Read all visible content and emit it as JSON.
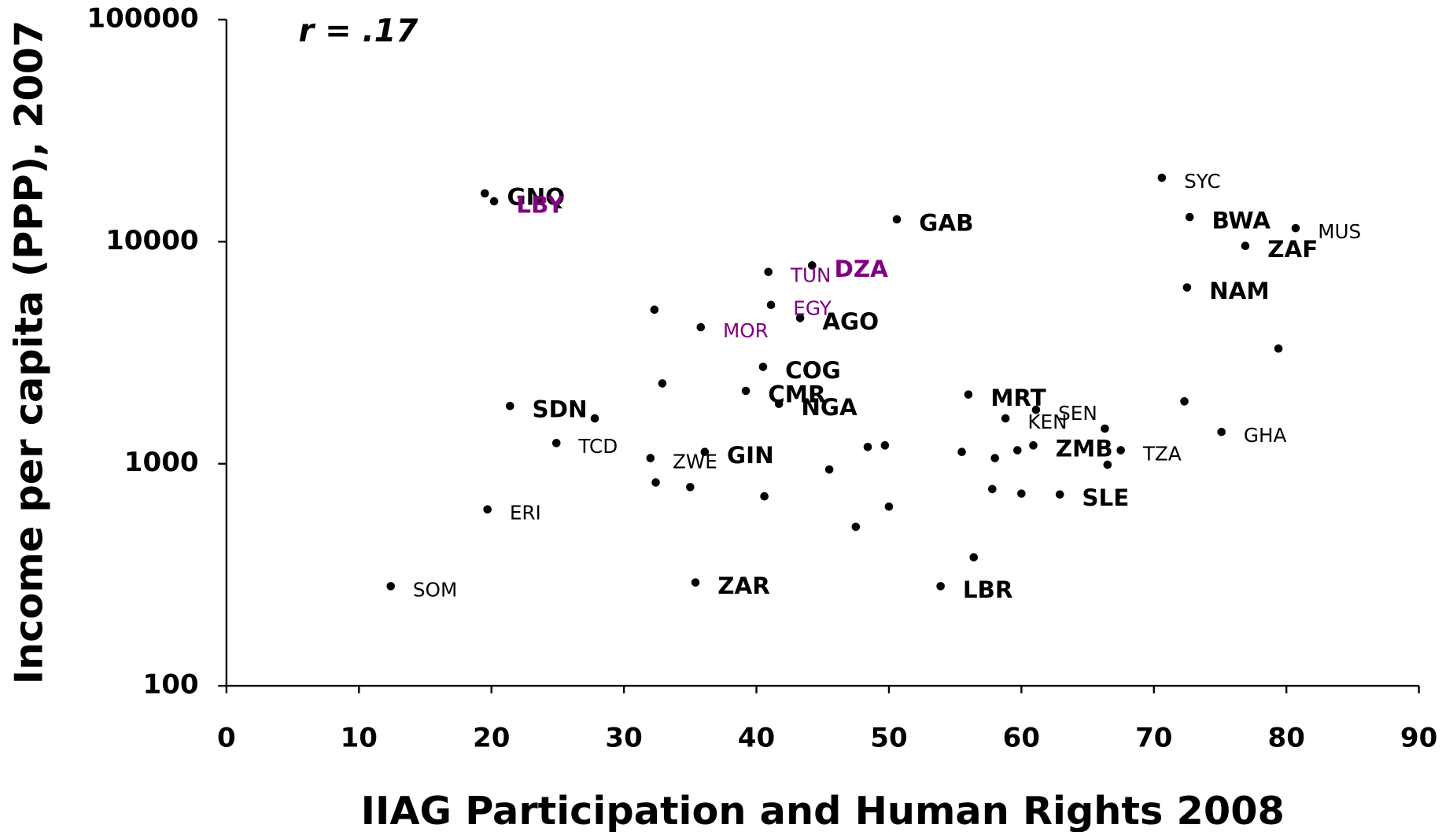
{
  "chart_data": {
    "type": "scatter",
    "annotation": "r  = .17",
    "xlabel": "IIAG Participation and Human Rights 2008",
    "ylabel": "Income per capita (PPP), 2007",
    "xlim": [
      0,
      90
    ],
    "xticks": [
      0,
      10,
      20,
      30,
      40,
      50,
      60,
      70,
      80,
      90
    ],
    "ylim": [
      100,
      100000
    ],
    "yticks": [
      100,
      1000,
      10000,
      100000
    ],
    "log_y": true,
    "grid": false,
    "series": [
      {
        "color": "#000000",
        "bold": true,
        "labels": [
          "GNQ",
          "GAB",
          "BWA",
          "ZAF",
          "NAM",
          "AGO",
          "COG",
          "CMR",
          "NGA",
          "MRT",
          "SDN",
          "GIN",
          "ZMB",
          "SLE",
          "ZAR",
          "LBR"
        ],
        "x": [
          19.5,
          50.6,
          72.7,
          76.9,
          72.5,
          43.3,
          40.5,
          39.2,
          41.7,
          56.0,
          21.4,
          36.1,
          60.9,
          62.9,
          35.4,
          53.9
        ],
        "values": [
          16500,
          12600,
          12900,
          9570,
          6220,
          4530,
          2730,
          2130,
          1860,
          2050,
          1820,
          1130,
          1210,
          727,
          292,
          281
        ]
      },
      {
        "color": "#000000",
        "bold": false,
        "labels": [
          "SYC",
          "MUS",
          "SEN",
          "KEN",
          "GHA",
          "TCD",
          "ZWE",
          "TZA",
          "ERI",
          "SOM"
        ],
        "x": [
          70.6,
          80.7,
          61.1,
          58.8,
          75.1,
          24.9,
          32.0,
          67.5,
          19.7,
          12.4
        ],
        "values": [
          19400,
          11500,
          1750,
          1600,
          1390,
          1240,
          1060,
          1150,
          623,
          281
        ]
      },
      {
        "color": "#800080",
        "bold": true,
        "labels": [
          "LBY",
          "DZA"
        ],
        "x": [
          20.2,
          44.2
        ],
        "values": [
          15200,
          7820
        ]
      },
      {
        "color": "#800080",
        "bold": false,
        "labels": [
          "TUN",
          "EGY",
          "MOR"
        ],
        "x": [
          40.9,
          41.1,
          35.8
        ],
        "values": [
          7310,
          5190,
          4120
        ]
      },
      {
        "color": "#000000",
        "x": [
          32.3,
          79.4,
          32.9,
          27.8,
          72.3,
          66.3,
          48.4,
          49.7,
          55.5,
          58.0,
          59.7,
          66.5,
          45.5,
          32.4,
          35.0,
          57.8,
          60.0,
          40.6,
          50.0,
          47.5,
          56.4
        ],
        "values": [
          4940,
          3300,
          2300,
          1600,
          1910,
          1440,
          1190,
          1210,
          1130,
          1060,
          1150,
          990,
          942,
          824,
          785,
          769,
          734,
          713,
          641,
          520,
          379
        ]
      }
    ]
  }
}
